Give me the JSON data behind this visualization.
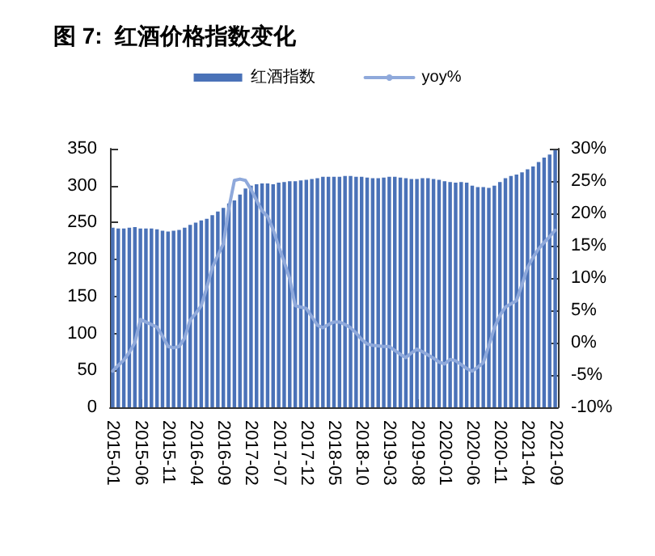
{
  "chart_data": {
    "type": "bar",
    "title": "图 7:  红酒价格指数变化",
    "categories": [
      "2015-01",
      null,
      null,
      null,
      null,
      "2015-06",
      null,
      null,
      null,
      null,
      "2015-11",
      null,
      null,
      null,
      null,
      "2016-04",
      null,
      null,
      null,
      null,
      "2016-09",
      null,
      null,
      null,
      null,
      "2017-02",
      null,
      null,
      null,
      null,
      "2017-07",
      null,
      null,
      null,
      null,
      "2017-12",
      null,
      null,
      null,
      null,
      "2018-05",
      null,
      null,
      null,
      null,
      "2018-10",
      null,
      null,
      null,
      null,
      "2019-03",
      null,
      null,
      null,
      null,
      "2019-08",
      null,
      null,
      null,
      null,
      "2020-01",
      null,
      null,
      null,
      null,
      "2020-06",
      null,
      null,
      null,
      null,
      "2020-11",
      null,
      null,
      null,
      null,
      "2021-04",
      null,
      null,
      null,
      null,
      "2021-09"
    ],
    "series": [
      {
        "name": "红酒指数",
        "color": "#4a72b8",
        "values": [
          243,
          242,
          242,
          243,
          244,
          242,
          242,
          242,
          241,
          239,
          238,
          239,
          240,
          243,
          247,
          250,
          253,
          255,
          260,
          265,
          270,
          276,
          280,
          288,
          296,
          300,
          302,
          303,
          303,
          302,
          304,
          305,
          306,
          306,
          307,
          308,
          309,
          310,
          312,
          312,
          312,
          312,
          313,
          313,
          312,
          312,
          311,
          310,
          310,
          311,
          312,
          312,
          311,
          310,
          309,
          309,
          310,
          310,
          309,
          308,
          306,
          305,
          304,
          305,
          304,
          300,
          298,
          298,
          297,
          300,
          305,
          310,
          313,
          315,
          318,
          322,
          326,
          332,
          338,
          342,
          348
        ]
      },
      {
        "name": "yoy%",
        "type": "line",
        "axis": "y2",
        "color": "#8fa9db",
        "values": [
          -4.4,
          -3.5,
          -2.7,
          -1.5,
          0,
          3.6,
          3.2,
          2.8,
          2.4,
          1.0,
          -0.6,
          -0.8,
          -0.6,
          0.7,
          3.5,
          4.5,
          5.7,
          8.5,
          11.6,
          13.5,
          15.3,
          20.8,
          25.1,
          25.3,
          25.1,
          23.7,
          22,
          20.4,
          19.5,
          17.5,
          14.9,
          12.5,
          9.9,
          5.7,
          5.5,
          5.3,
          4,
          2.7,
          2.3,
          2.8,
          3.2,
          3.2,
          2.8,
          2.3,
          1.5,
          0.5,
          -0.2,
          -0.4,
          -0.5,
          -0.6,
          -0.6,
          -1.2,
          -1.8,
          -2.3,
          -1.6,
          -1.0,
          -1.4,
          -1.9,
          -2.4,
          -3.0,
          -3.3,
          -2.6,
          -2.8,
          -3.4,
          -4.0,
          -4.4,
          -3.8,
          -3.1,
          -0.5,
          2.3,
          4.2,
          5.5,
          6.0,
          6.5,
          9.0,
          11.6,
          13.2,
          14.5,
          15.5,
          16.4,
          17.4
        ]
      }
    ],
    "ylim": [
      0,
      350
    ],
    "yticks": [
      0,
      50,
      100,
      150,
      200,
      250,
      300,
      350
    ],
    "y2lim": [
      -10,
      30
    ],
    "y2ticks": [
      {
        "value": -10,
        "label": "-10%"
      },
      {
        "value": -5,
        "label": "-5%"
      },
      {
        "value": 0,
        "label": "0%"
      },
      {
        "value": 5,
        "label": "5%"
      },
      {
        "value": 10,
        "label": "10%"
      },
      {
        "value": 15,
        "label": "15%"
      },
      {
        "value": 20,
        "label": "20%"
      },
      {
        "value": 25,
        "label": "25%"
      },
      {
        "value": 30,
        "label": "30%"
      }
    ],
    "grid": false,
    "legend": "top",
    "marker": "none",
    "line_style": "solid"
  }
}
